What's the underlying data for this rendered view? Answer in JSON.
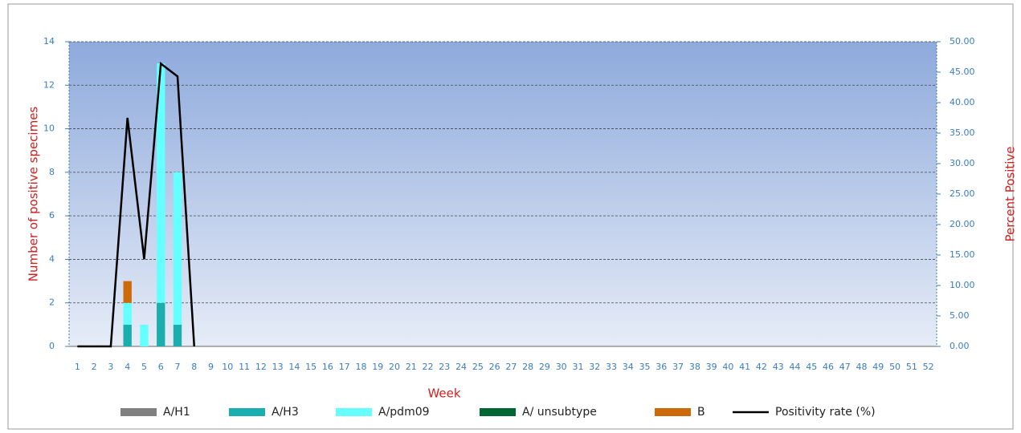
{
  "chart_data": {
    "type": "bar",
    "stacked": true,
    "xlabel": "Week",
    "ylabel": "Number of positive specimes",
    "y2label": "Percent Positive",
    "categories": [
      "1",
      "2",
      "3",
      "4",
      "5",
      "6",
      "7",
      "8",
      "9",
      "10",
      "11",
      "12",
      "13",
      "14",
      "15",
      "16",
      "17",
      "18",
      "19",
      "20",
      "21",
      "22",
      "23",
      "24",
      "25",
      "26",
      "27",
      "28",
      "29",
      "30",
      "31",
      "32",
      "33",
      "34",
      "35",
      "36",
      "37",
      "38",
      "39",
      "40",
      "41",
      "42",
      "43",
      "44",
      "45",
      "46",
      "47",
      "48",
      "49",
      "50",
      "51",
      "52"
    ],
    "ylim": [
      0,
      14
    ],
    "yticks": [
      0,
      2,
      4,
      6,
      8,
      10,
      12,
      14
    ],
    "y2lim": [
      0,
      50
    ],
    "y2ticks": [
      {
        "value": 0,
        "label": "0.00"
      },
      {
        "value": 5,
        "label": "5.00"
      },
      {
        "value": 10,
        "label": "10.00"
      },
      {
        "value": 15,
        "label": "15.00"
      },
      {
        "value": 20,
        "label": "20.00"
      },
      {
        "value": 25,
        "label": "25.00"
      },
      {
        "value": 30,
        "label": "30.00"
      },
      {
        "value": 35,
        "label": "35.00"
      },
      {
        "value": 40,
        "label": "40.00"
      },
      {
        "value": 45,
        "label": "45.00"
      },
      {
        "value": 50,
        "label": "50.00"
      }
    ],
    "grid": true,
    "series": [
      {
        "name": "A/H1",
        "color": "#808080",
        "type": "bar",
        "values": [
          0,
          0,
          0,
          0,
          0,
          0,
          0,
          0,
          0,
          0,
          0,
          0,
          0,
          0,
          0,
          0,
          0,
          0,
          0,
          0,
          0,
          0,
          0,
          0,
          0,
          0,
          0,
          0,
          0,
          0,
          0,
          0,
          0,
          0,
          0,
          0,
          0,
          0,
          0,
          0,
          0,
          0,
          0,
          0,
          0,
          0,
          0,
          0,
          0,
          0,
          0,
          0
        ]
      },
      {
        "name": "A/H3",
        "color": "#1aaeae",
        "type": "bar",
        "values": [
          0,
          0,
          0,
          1,
          0,
          2,
          1,
          0,
          0,
          0,
          0,
          0,
          0,
          0,
          0,
          0,
          0,
          0,
          0,
          0,
          0,
          0,
          0,
          0,
          0,
          0,
          0,
          0,
          0,
          0,
          0,
          0,
          0,
          0,
          0,
          0,
          0,
          0,
          0,
          0,
          0,
          0,
          0,
          0,
          0,
          0,
          0,
          0,
          0,
          0,
          0,
          0
        ]
      },
      {
        "name": "A/pdm09",
        "color": "#66ffff",
        "type": "bar",
        "values": [
          0,
          0,
          0,
          1,
          1,
          11,
          7,
          0,
          0,
          0,
          0,
          0,
          0,
          0,
          0,
          0,
          0,
          0,
          0,
          0,
          0,
          0,
          0,
          0,
          0,
          0,
          0,
          0,
          0,
          0,
          0,
          0,
          0,
          0,
          0,
          0,
          0,
          0,
          0,
          0,
          0,
          0,
          0,
          0,
          0,
          0,
          0,
          0,
          0,
          0,
          0,
          0
        ]
      },
      {
        "name": "A/ unsubtype",
        "color": "#006633",
        "type": "bar",
        "values": [
          0,
          0,
          0,
          0,
          0,
          0,
          0,
          0,
          0,
          0,
          0,
          0,
          0,
          0,
          0,
          0,
          0,
          0,
          0,
          0,
          0,
          0,
          0,
          0,
          0,
          0,
          0,
          0,
          0,
          0,
          0,
          0,
          0,
          0,
          0,
          0,
          0,
          0,
          0,
          0,
          0,
          0,
          0,
          0,
          0,
          0,
          0,
          0,
          0,
          0,
          0,
          0
        ]
      },
      {
        "name": "B",
        "color": "#cc6a0a",
        "type": "bar",
        "values": [
          0,
          0,
          0,
          1,
          0,
          0,
          0,
          0,
          0,
          0,
          0,
          0,
          0,
          0,
          0,
          0,
          0,
          0,
          0,
          0,
          0,
          0,
          0,
          0,
          0,
          0,
          0,
          0,
          0,
          0,
          0,
          0,
          0,
          0,
          0,
          0,
          0,
          0,
          0,
          0,
          0,
          0,
          0,
          0,
          0,
          0,
          0,
          0,
          0,
          0,
          0,
          0
        ]
      },
      {
        "name": "Positivity rate (%)",
        "color": "#000000",
        "type": "line",
        "axis": "y2",
        "values": [
          0,
          0,
          0,
          37.5,
          14.3,
          46.4,
          44.3,
          0,
          null,
          null,
          null,
          null,
          null,
          null,
          null,
          null,
          null,
          null,
          null,
          null,
          null,
          null,
          null,
          null,
          null,
          null,
          null,
          null,
          null,
          null,
          null,
          null,
          null,
          null,
          null,
          null,
          null,
          null,
          null,
          null,
          null,
          null,
          null,
          null,
          null,
          null,
          null,
          null,
          null,
          null,
          null,
          null
        ]
      }
    ]
  }
}
